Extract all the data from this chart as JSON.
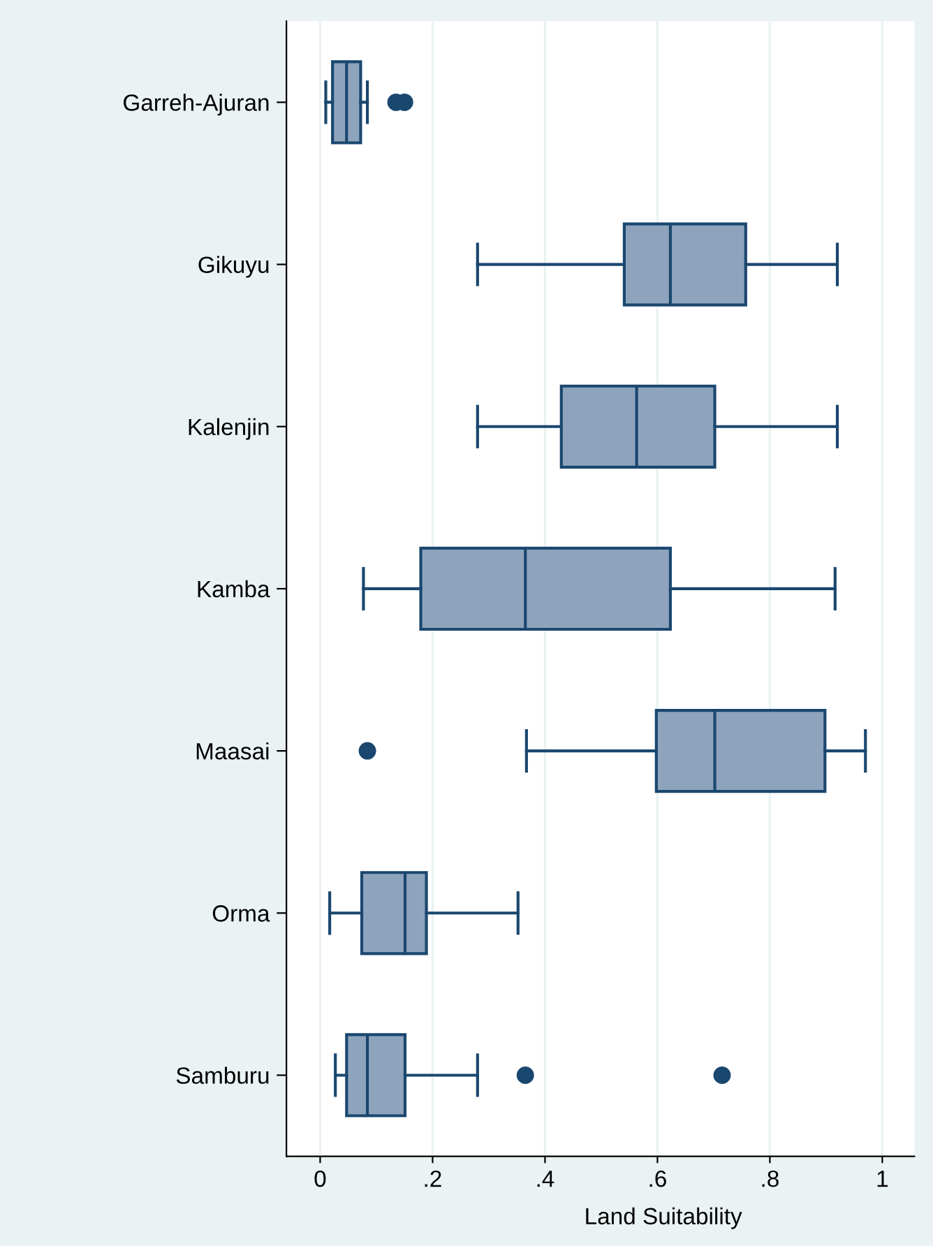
{
  "chart_data": {
    "type": "box",
    "orientation": "horizontal",
    "xlabel": "Land Suitability",
    "categories": [
      "Garreh-Ajuran",
      "Gikuyu",
      "Kalenjin",
      "Kamba",
      "Maasai",
      "Orma",
      "Samburu"
    ],
    "boxes": [
      {
        "low": 0.01,
        "q1": 0.022,
        "median": 0.047,
        "q3": 0.072,
        "high": 0.084,
        "outliers": [
          0.135,
          0.15
        ]
      },
      {
        "low": 0.28,
        "q1": 0.541,
        "median": 0.623,
        "q3": 0.757,
        "high": 0.92
      },
      {
        "low": 0.28,
        "q1": 0.429,
        "median": 0.563,
        "q3": 0.702,
        "high": 0.92
      },
      {
        "low": 0.077,
        "q1": 0.179,
        "median": 0.365,
        "q3": 0.623,
        "high": 0.916
      },
      {
        "low": 0.367,
        "q1": 0.598,
        "median": 0.702,
        "q3": 0.898,
        "high": 0.97,
        "outliers": [
          0.084
        ]
      },
      {
        "low": 0.017,
        "q1": 0.074,
        "median": 0.151,
        "q3": 0.189,
        "high": 0.352
      },
      {
        "low": 0.027,
        "q1": 0.047,
        "median": 0.084,
        "q3": 0.151,
        "high": 0.28,
        "outliers": [
          0.365,
          0.715
        ]
      }
    ],
    "color": "#8ea4bd",
    "xlim": [
      -0.06,
      1.057
    ],
    "xticks": [
      0,
      {
        "value": 0.2,
        "label": ".2"
      },
      {
        "value": 0.4,
        "label": ".4"
      },
      {
        "value": 0.6,
        "label": ".6"
      },
      {
        "value": 0.8,
        "label": ".8"
      },
      1
    ],
    "grid": "x",
    "legend": false
  }
}
